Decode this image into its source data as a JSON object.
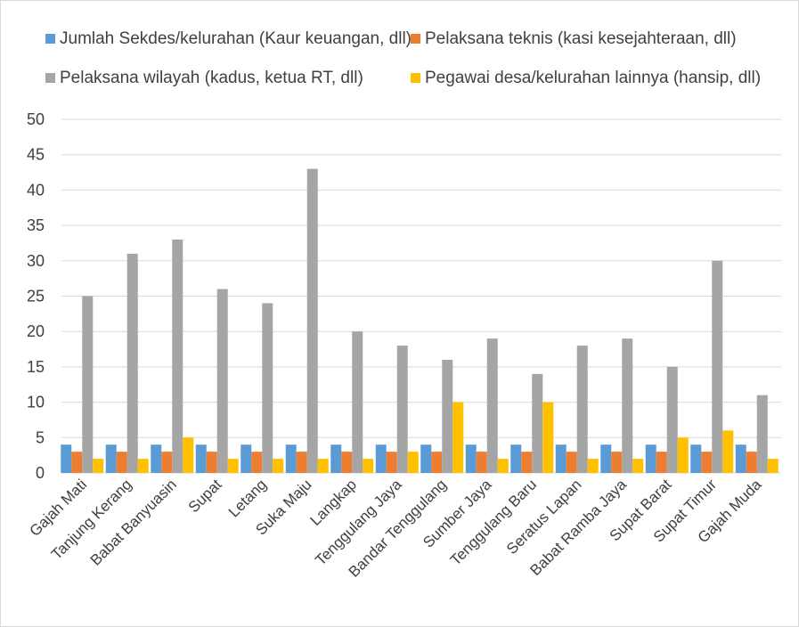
{
  "chart_data": {
    "type": "bar",
    "title": "",
    "xlabel": "",
    "ylabel": "",
    "ylim": [
      0,
      50
    ],
    "yticks": [
      0,
      5,
      10,
      15,
      20,
      25,
      30,
      35,
      40,
      45,
      50
    ],
    "grid": true,
    "legend_position": "top",
    "categories": [
      "Gajah Mati",
      "Tanjung Kerang",
      "Babat Banyuasin",
      "Supat",
      "Letang",
      "Suka Maju",
      "Langkap",
      "Tenggulang Jaya",
      "Bandar Tenggulang",
      "Sumber Jaya",
      "Tenggulang Baru",
      "Seratus Lapan",
      "Babat Ramba Jaya",
      "Supat Barat",
      "Supat Timur",
      "Gajah Muda"
    ],
    "series": [
      {
        "name": "Jumlah Sekdes/kelurahan (Kaur keuangan, dll)",
        "color": "#5b9bd5",
        "values": [
          4,
          4,
          4,
          4,
          4,
          4,
          4,
          4,
          4,
          4,
          4,
          4,
          4,
          4,
          4,
          4
        ]
      },
      {
        "name": "Pelaksana teknis (kasi kesejahteraan, dll)",
        "color": "#ed7d31",
        "values": [
          3,
          3,
          3,
          3,
          3,
          3,
          3,
          3,
          3,
          3,
          3,
          3,
          3,
          3,
          3,
          3
        ]
      },
      {
        "name": "Pelaksana wilayah (kadus, ketua RT, dll)",
        "color": "#a5a5a5",
        "values": [
          25,
          31,
          33,
          26,
          24,
          43,
          20,
          18,
          16,
          19,
          14,
          18,
          19,
          15,
          30,
          11
        ]
      },
      {
        "name": "Pegawai desa/kelurahan lainnya (hansip, dll)",
        "color": "#ffc000",
        "values": [
          2,
          2,
          5,
          2,
          2,
          2,
          2,
          3,
          10,
          2,
          10,
          2,
          2,
          5,
          6,
          2
        ]
      }
    ],
    "gridline_color": "#d9d9d9"
  }
}
